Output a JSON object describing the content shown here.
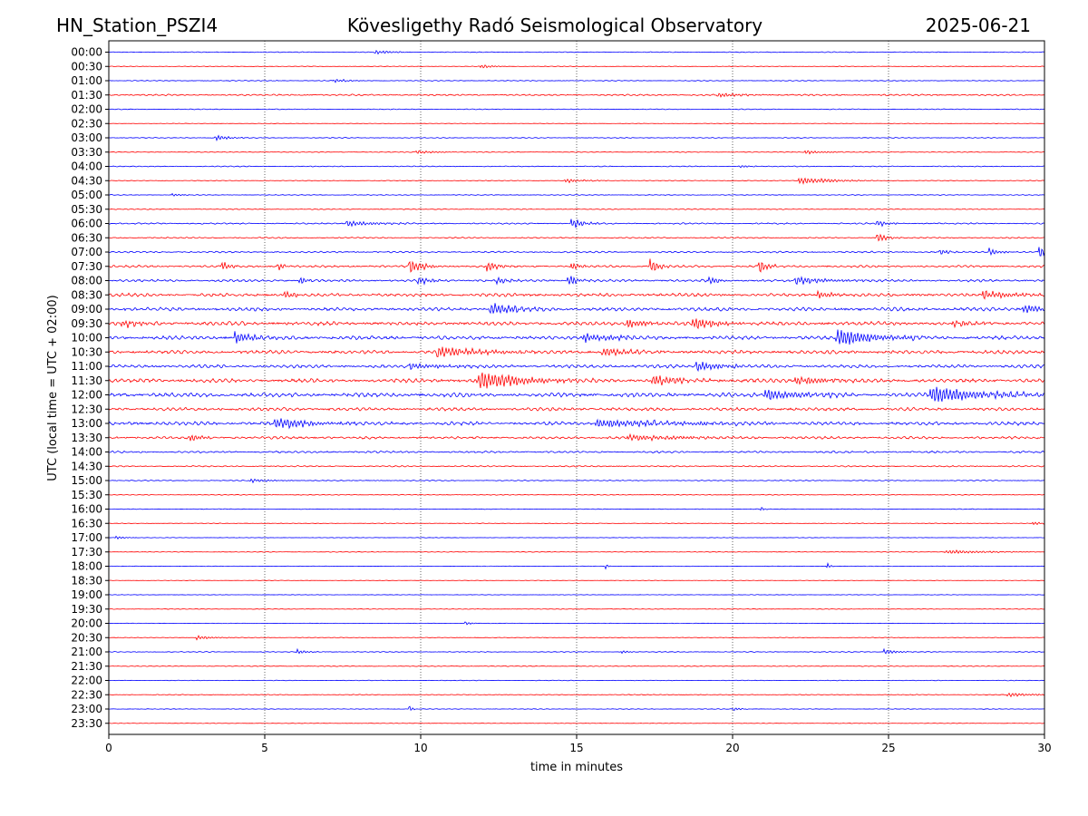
{
  "header": {
    "station": "HN_Station_PSZI4",
    "observatory": "Kövesligethy Radó Seismological Observatory",
    "date": "2025-06-21"
  },
  "chart_data": {
    "type": "line",
    "title": "Kövesligethy Radó Seismological Observatory",
    "xlabel": "time in minutes",
    "ylabel": "UTC (local time = UTC + 02:00)",
    "xlim": [
      0,
      30
    ],
    "x_ticks": [
      "0",
      "5",
      "10",
      "15",
      "20",
      "25",
      "30"
    ],
    "x_tick_values": [
      0,
      5,
      10,
      15,
      20,
      25,
      30
    ],
    "grid": "vertical dotted at x ticks",
    "trace_colors": [
      "#0000ff",
      "#ff0000"
    ],
    "rows": [
      "00:00",
      "00:30",
      "01:00",
      "01:30",
      "02:00",
      "02:30",
      "03:00",
      "03:30",
      "04:00",
      "04:30",
      "05:00",
      "05:30",
      "06:00",
      "06:30",
      "07:00",
      "07:30",
      "08:00",
      "08:30",
      "09:00",
      "09:30",
      "10:00",
      "10:30",
      "11:00",
      "11:30",
      "12:00",
      "12:30",
      "13:00",
      "13:30",
      "14:00",
      "14:30",
      "15:00",
      "15:30",
      "16:00",
      "16:30",
      "17:00",
      "17:30",
      "18:00",
      "18:30",
      "19:00",
      "19:30",
      "20:00",
      "20:30",
      "21:00",
      "21:30",
      "22:00",
      "22:30",
      "23:00",
      "23:30"
    ],
    "noise_level": [
      0.5,
      0.4,
      0.5,
      1.0,
      0.5,
      0.3,
      0.5,
      0.5,
      0.6,
      0.5,
      0.5,
      0.6,
      0.9,
      0.8,
      1.0,
      1.4,
      1.5,
      2.0,
      2.2,
      2.4,
      2.2,
      2.2,
      2.0,
      2.4,
      2.6,
      2.0,
      2.2,
      1.6,
      1.2,
      0.8,
      0.6,
      0.5,
      0.4,
      0.4,
      0.3,
      0.4,
      0.3,
      0.3,
      0.3,
      0.4,
      0.3,
      0.4,
      0.5,
      0.5,
      0.4,
      0.5,
      0.4,
      0.3
    ],
    "events": [
      {
        "row": 0,
        "minute": 8.5,
        "amp": 2,
        "dur": 0.5
      },
      {
        "row": 1,
        "minute": 11.9,
        "amp": 2,
        "dur": 0.4
      },
      {
        "row": 2,
        "minute": 7.2,
        "amp": 2,
        "dur": 0.4
      },
      {
        "row": 3,
        "minute": 19.5,
        "amp": 2,
        "dur": 0.8
      },
      {
        "row": 6,
        "minute": 3.4,
        "amp": 3,
        "dur": 0.4
      },
      {
        "row": 7,
        "minute": 9.8,
        "amp": 2,
        "dur": 0.6
      },
      {
        "row": 7,
        "minute": 22.3,
        "amp": 2,
        "dur": 0.5
      },
      {
        "row": 8,
        "minute": 20.2,
        "amp": 1.5,
        "dur": 0.3
      },
      {
        "row": 9,
        "minute": 14.6,
        "amp": 2,
        "dur": 0.6
      },
      {
        "row": 9,
        "minute": 22.1,
        "amp": 3.5,
        "dur": 1.0
      },
      {
        "row": 10,
        "minute": 2.0,
        "amp": 1.5,
        "dur": 0.3
      },
      {
        "row": 12,
        "minute": 7.6,
        "amp": 3,
        "dur": 0.8
      },
      {
        "row": 12,
        "minute": 14.8,
        "amp": 5,
        "dur": 0.4
      },
      {
        "row": 12,
        "minute": 24.6,
        "amp": 4,
        "dur": 0.3
      },
      {
        "row": 13,
        "minute": 24.6,
        "amp": 5,
        "dur": 0.3
      },
      {
        "row": 14,
        "minute": 28.2,
        "amp": 4,
        "dur": 0.3
      },
      {
        "row": 14,
        "minute": 29.8,
        "amp": 8,
        "dur": 0.2
      },
      {
        "row": 14,
        "minute": 26.6,
        "amp": 3,
        "dur": 0.3
      },
      {
        "row": 15,
        "minute": 3.6,
        "amp": 6,
        "dur": 0.2
      },
      {
        "row": 15,
        "minute": 5.4,
        "amp": 5,
        "dur": 0.2
      },
      {
        "row": 15,
        "minute": 9.6,
        "amp": 8,
        "dur": 0.4
      },
      {
        "row": 15,
        "minute": 12.1,
        "amp": 6,
        "dur": 0.3
      },
      {
        "row": 15,
        "minute": 14.8,
        "amp": 4,
        "dur": 0.3
      },
      {
        "row": 15,
        "minute": 17.3,
        "amp": 9,
        "dur": 0.3
      },
      {
        "row": 15,
        "minute": 20.8,
        "amp": 8,
        "dur": 0.3
      },
      {
        "row": 16,
        "minute": 6.1,
        "amp": 5,
        "dur": 0.2
      },
      {
        "row": 16,
        "minute": 9.9,
        "amp": 4,
        "dur": 0.4
      },
      {
        "row": 16,
        "minute": 12.4,
        "amp": 4,
        "dur": 0.3
      },
      {
        "row": 16,
        "minute": 14.7,
        "amp": 6,
        "dur": 0.3
      },
      {
        "row": 16,
        "minute": 19.2,
        "amp": 4,
        "dur": 0.3
      },
      {
        "row": 16,
        "minute": 22.0,
        "amp": 4,
        "dur": 1.0
      },
      {
        "row": 17,
        "minute": 5.6,
        "amp": 4,
        "dur": 0.3
      },
      {
        "row": 17,
        "minute": 22.7,
        "amp": 5,
        "dur": 0.4
      },
      {
        "row": 17,
        "minute": 28.0,
        "amp": 4,
        "dur": 1.0
      },
      {
        "row": 18,
        "minute": 12.2,
        "amp": 7,
        "dur": 0.8
      },
      {
        "row": 18,
        "minute": 29.3,
        "amp": 4,
        "dur": 1.0
      },
      {
        "row": 19,
        "minute": 0.4,
        "amp": 4,
        "dur": 0.5
      },
      {
        "row": 19,
        "minute": 16.6,
        "amp": 5,
        "dur": 0.5
      },
      {
        "row": 19,
        "minute": 18.7,
        "amp": 6,
        "dur": 0.8
      },
      {
        "row": 19,
        "minute": 27.0,
        "amp": 4,
        "dur": 0.6
      },
      {
        "row": 20,
        "minute": 4.0,
        "amp": 6,
        "dur": 0.6
      },
      {
        "row": 20,
        "minute": 15.2,
        "amp": 4,
        "dur": 1.2
      },
      {
        "row": 20,
        "minute": 23.3,
        "amp": 9,
        "dur": 1.2
      },
      {
        "row": 21,
        "minute": 10.5,
        "amp": 5,
        "dur": 1.5
      },
      {
        "row": 21,
        "minute": 15.8,
        "amp": 4,
        "dur": 0.8
      },
      {
        "row": 22,
        "minute": 9.6,
        "amp": 3,
        "dur": 1.0
      },
      {
        "row": 22,
        "minute": 18.8,
        "amp": 5,
        "dur": 0.8
      },
      {
        "row": 23,
        "minute": 11.8,
        "amp": 9,
        "dur": 1.5
      },
      {
        "row": 23,
        "minute": 17.4,
        "amp": 5,
        "dur": 1.0
      },
      {
        "row": 23,
        "minute": 22.0,
        "amp": 4,
        "dur": 1.0
      },
      {
        "row": 24,
        "minute": 21.0,
        "amp": 6,
        "dur": 1.2
      },
      {
        "row": 24,
        "minute": 26.3,
        "amp": 8,
        "dur": 1.8
      },
      {
        "row": 26,
        "minute": 5.3,
        "amp": 5,
        "dur": 1.2
      },
      {
        "row": 26,
        "minute": 15.6,
        "amp": 4,
        "dur": 2.5
      },
      {
        "row": 27,
        "minute": 2.6,
        "amp": 5,
        "dur": 0.3
      },
      {
        "row": 27,
        "minute": 16.6,
        "amp": 3,
        "dur": 1.5
      },
      {
        "row": 30,
        "minute": 4.5,
        "amp": 2,
        "dur": 0.6
      },
      {
        "row": 32,
        "minute": 20.9,
        "amp": 3,
        "dur": 0.1
      },
      {
        "row": 33,
        "minute": 29.6,
        "amp": 2,
        "dur": 0.3
      },
      {
        "row": 34,
        "minute": 0.2,
        "amp": 2,
        "dur": 0.3
      },
      {
        "row": 35,
        "minute": 26.8,
        "amp": 2,
        "dur": 1.2
      },
      {
        "row": 36,
        "minute": 23.0,
        "amp": 4,
        "dur": 0.1
      },
      {
        "row": 36,
        "minute": 15.9,
        "amp": 3,
        "dur": 0.1
      },
      {
        "row": 40,
        "minute": 11.4,
        "amp": 2,
        "dur": 0.2
      },
      {
        "row": 41,
        "minute": 2.8,
        "amp": 2,
        "dur": 0.5
      },
      {
        "row": 42,
        "minute": 6.0,
        "amp": 3,
        "dur": 0.3
      },
      {
        "row": 42,
        "minute": 24.8,
        "amp": 3,
        "dur": 0.4
      },
      {
        "row": 42,
        "minute": 16.4,
        "amp": 2,
        "dur": 0.2
      },
      {
        "row": 45,
        "minute": 28.8,
        "amp": 2,
        "dur": 0.8
      },
      {
        "row": 46,
        "minute": 9.6,
        "amp": 5,
        "dur": 0.1
      },
      {
        "row": 46,
        "minute": 20.0,
        "amp": 2,
        "dur": 0.2
      }
    ]
  }
}
